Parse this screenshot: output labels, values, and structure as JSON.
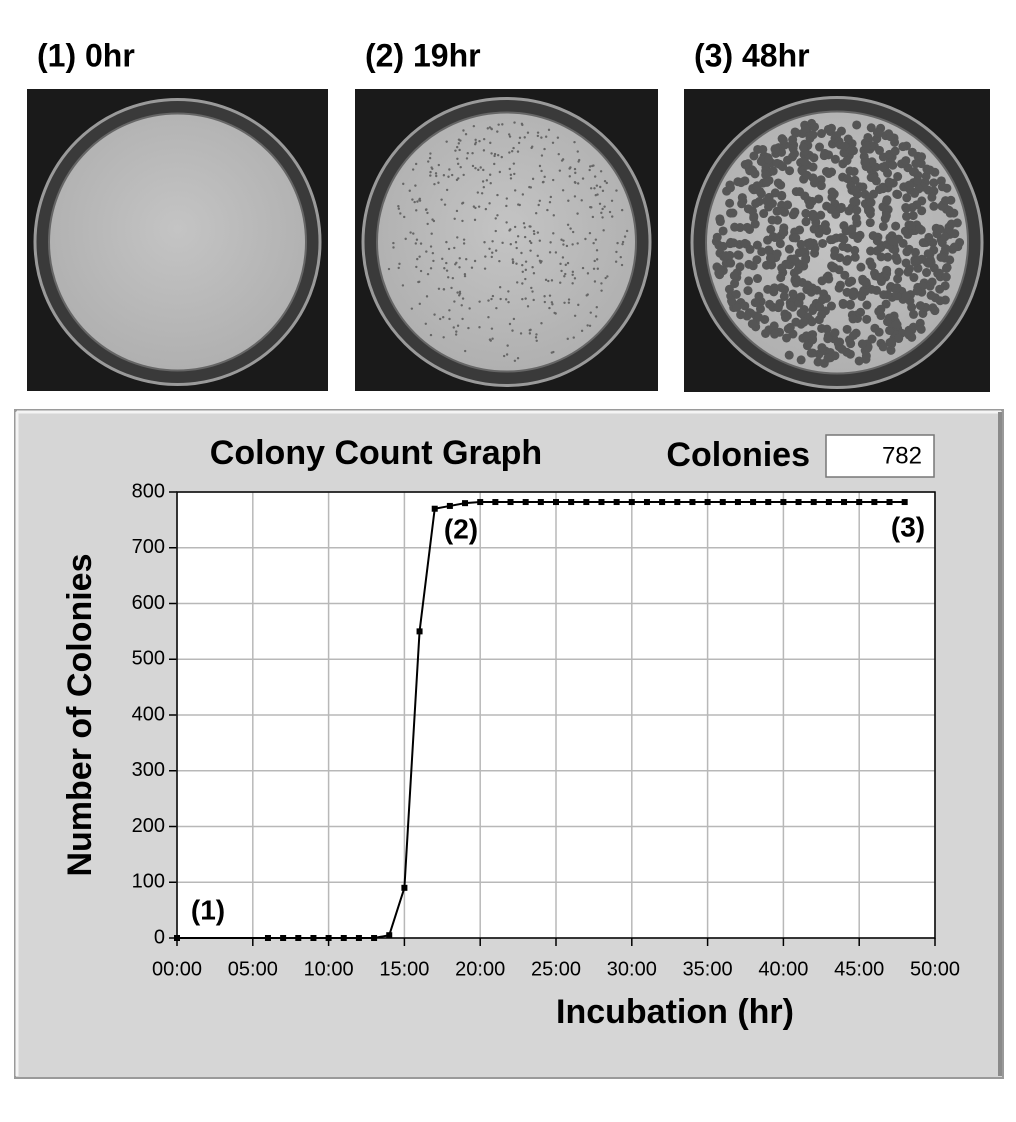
{
  "photos": [
    {
      "label": "(1) 0hr"
    },
    {
      "label": "(2) 19hr"
    },
    {
      "label": "(3) 48hr"
    }
  ],
  "chart_data": {
    "type": "line",
    "title": "Colony Count Graph",
    "counter_label": "Colonies",
    "counter_value": 782,
    "xlabel": "Incubation (hr)",
    "ylabel": "Number of Colonies",
    "x": [
      0,
      6,
      7,
      8,
      9,
      10,
      11,
      12,
      13,
      14,
      15,
      16,
      17,
      18,
      19,
      20,
      21,
      22,
      23,
      24,
      25,
      26,
      27,
      28,
      29,
      30,
      31,
      32,
      33,
      34,
      35,
      36,
      37,
      38,
      39,
      40,
      41,
      42,
      43,
      44,
      45,
      46,
      47,
      48
    ],
    "values": [
      0,
      0,
      0,
      0,
      0,
      0,
      0,
      0,
      0,
      5,
      90,
      550,
      770,
      775,
      780,
      782,
      782,
      782,
      782,
      782,
      782,
      782,
      782,
      782,
      782,
      782,
      782,
      782,
      782,
      782,
      782,
      782,
      782,
      782,
      782,
      782,
      782,
      782,
      782,
      782,
      782,
      782,
      782,
      782
    ],
    "color": "#000000",
    "xlim": [
      0,
      50
    ],
    "ylim": [
      0,
      800
    ],
    "xticks": [
      {
        "value": 0,
        "label": "00:00"
      },
      {
        "value": 5,
        "label": "05:00"
      },
      {
        "value": 10,
        "label": "10:00"
      },
      {
        "value": 15,
        "label": "15:00"
      },
      {
        "value": 20,
        "label": "20:00"
      },
      {
        "value": 25,
        "label": "25:00"
      },
      {
        "value": 30,
        "label": "30:00"
      },
      {
        "value": 35,
        "label": "35:00"
      },
      {
        "value": 40,
        "label": "40:00"
      },
      {
        "value": 45,
        "label": "45:00"
      },
      {
        "value": 50,
        "label": "50:00"
      }
    ],
    "yticks": [
      0,
      100,
      200,
      300,
      400,
      500,
      600,
      700,
      800
    ],
    "grid": true,
    "annotations": [
      "(1)",
      "(2)",
      "(3)"
    ]
  }
}
